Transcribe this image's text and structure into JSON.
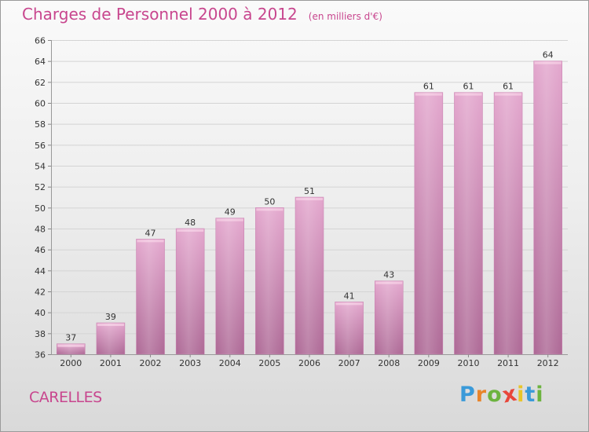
{
  "header": {
    "title": "Charges de Personnel 2000 à 2012",
    "subtitle": "(en milliers d'€)"
  },
  "footer": {
    "commune": "CARELLES",
    "logo": {
      "letters": [
        "P",
        "r",
        "o",
        "x",
        "i",
        "t",
        "i"
      ],
      "colors": [
        "#3a9ad9",
        "#e8842a",
        "#6cb33f",
        "#e8463a",
        "#e8c52a",
        "#3a9ad9",
        "#6cb33f"
      ]
    }
  },
  "chart_data": {
    "type": "bar",
    "title": "Charges de Personnel 2000 à 2012",
    "subtitle": "(en milliers d'€)",
    "categories": [
      "2000",
      "2001",
      "2002",
      "2003",
      "2004",
      "2005",
      "2006",
      "2007",
      "2008",
      "2009",
      "2010",
      "2011",
      "2012"
    ],
    "values": [
      37,
      39,
      47,
      48,
      49,
      50,
      51,
      41,
      43,
      61,
      61,
      61,
      64
    ],
    "ylim": [
      36,
      66
    ],
    "yticks": [
      36,
      38,
      40,
      42,
      44,
      46,
      48,
      50,
      52,
      54,
      56,
      58,
      60,
      62,
      64,
      66
    ],
    "grid": true,
    "bar_color": "#d993bd"
  }
}
